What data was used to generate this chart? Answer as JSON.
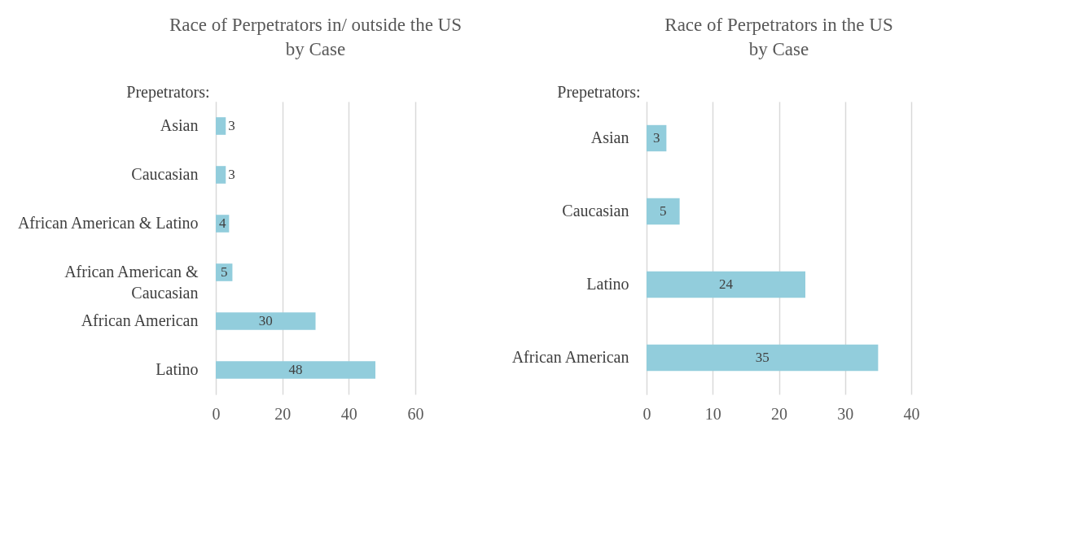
{
  "chart_data": [
    {
      "type": "bar",
      "orientation": "horizontal",
      "title": "Race of Perpetrators in/ outside the US\nby Case",
      "ylabel": "Prepetrators:",
      "categories": [
        "Asian",
        "Caucasian",
        "African American & Latino",
        "African American & Caucasian",
        "African American",
        "Latino"
      ],
      "values": [
        3,
        3,
        4,
        5,
        30,
        48
      ],
      "color": "#92cddc",
      "xlim": [
        0,
        60
      ],
      "xticks": [
        0,
        20,
        40,
        60
      ],
      "grid": "x",
      "data_labels": true
    },
    {
      "type": "bar",
      "orientation": "horizontal",
      "title": "Race of Perpetrators in the US\nby Case",
      "ylabel": "Prepetrators:",
      "categories": [
        "Asian",
        "Caucasian",
        "Latino",
        "African American"
      ],
      "values": [
        3,
        5,
        24,
        35
      ],
      "color": "#92cddc",
      "xlim": [
        0,
        40
      ],
      "xticks": [
        0,
        10,
        20,
        30,
        40
      ],
      "grid": "x",
      "data_labels": true
    }
  ]
}
